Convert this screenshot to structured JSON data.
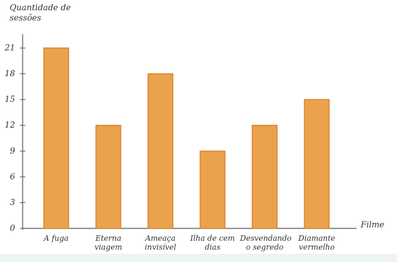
{
  "chart_data": {
    "type": "bar",
    "y_label": "Quantidade de sessões",
    "x_label": "Filme",
    "categories": [
      "A fuga",
      "Eterna viagem",
      "Ameaça invisível",
      "Ilha de cem dias",
      "Desvendando o segredo",
      "Diamante vermelho"
    ],
    "values": [
      21,
      12,
      18,
      9,
      12,
      15
    ],
    "color": "#eba24c",
    "ylim": [
      0,
      22
    ],
    "yticks": [
      0,
      3,
      6,
      9,
      12,
      15,
      18,
      21
    ],
    "grid": false
  }
}
